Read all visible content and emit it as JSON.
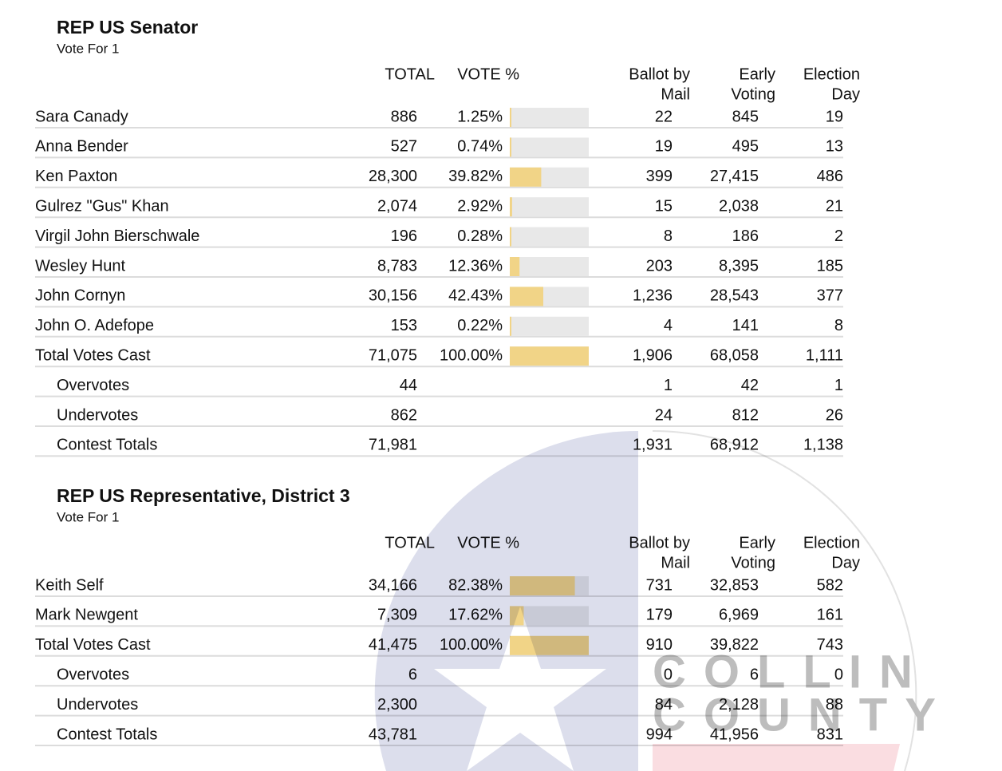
{
  "contests": [
    {
      "title": "REP US Senator",
      "vote_for": "Vote For 1",
      "headers": {
        "total": "TOTAL",
        "vote_pct": "VOTE %",
        "mail": [
          "Ballot by",
          "Mail"
        ],
        "early": [
          "Early",
          "Voting"
        ],
        "eday": [
          "Election",
          "Day"
        ]
      },
      "rows": [
        {
          "name": "Sara Canady",
          "total": "886",
          "pct": 1.25,
          "pct_label": "1.25%",
          "mail": "22",
          "early": "845",
          "eday": "19"
        },
        {
          "name": "Anna Bender",
          "total": "527",
          "pct": 0.74,
          "pct_label": "0.74%",
          "mail": "19",
          "early": "495",
          "eday": "13"
        },
        {
          "name": "Ken Paxton",
          "total": "28,300",
          "pct": 39.82,
          "pct_label": "39.82%",
          "mail": "399",
          "early": "27,415",
          "eday": "486"
        },
        {
          "name": "Gulrez \"Gus\" Khan",
          "total": "2,074",
          "pct": 2.92,
          "pct_label": "2.92%",
          "mail": "15",
          "early": "2,038",
          "eday": "21"
        },
        {
          "name": "Virgil John Bierschwale",
          "total": "196",
          "pct": 0.28,
          "pct_label": "0.28%",
          "mail": "8",
          "early": "186",
          "eday": "2"
        },
        {
          "name": "Wesley Hunt",
          "total": "8,783",
          "pct": 12.36,
          "pct_label": "12.36%",
          "mail": "203",
          "early": "8,395",
          "eday": "185"
        },
        {
          "name": "John Cornyn",
          "total": "30,156",
          "pct": 42.43,
          "pct_label": "42.43%",
          "mail": "1,236",
          "early": "28,543",
          "eday": "377"
        },
        {
          "name": "John O. Adefope",
          "total": "153",
          "pct": 0.22,
          "pct_label": "0.22%",
          "mail": "4",
          "early": "141",
          "eday": "8"
        },
        {
          "name": "Total Votes Cast",
          "total": "71,075",
          "pct": 100,
          "pct_label": "100.00%",
          "mail": "1,906",
          "early": "68,058",
          "eday": "1,111"
        }
      ],
      "summary": [
        {
          "name": "Overvotes",
          "total": "44",
          "mail": "1",
          "early": "42",
          "eday": "1"
        },
        {
          "name": "Undervotes",
          "total": "862",
          "mail": "24",
          "early": "812",
          "eday": "26"
        },
        {
          "name": "Contest Totals",
          "total": "71,981",
          "mail": "1,931",
          "early": "68,912",
          "eday": "1,138"
        }
      ]
    },
    {
      "title": "REP US Representative, District 3",
      "vote_for": "Vote For 1",
      "headers": {
        "total": "TOTAL",
        "vote_pct": "VOTE %",
        "mail": [
          "Ballot by",
          "Mail"
        ],
        "early": [
          "Early",
          "Voting"
        ],
        "eday": [
          "Election",
          "Day"
        ]
      },
      "rows": [
        {
          "name": "Keith Self",
          "total": "34,166",
          "pct": 82.38,
          "pct_label": "82.38%",
          "mail": "731",
          "early": "32,853",
          "eday": "582"
        },
        {
          "name": "Mark Newgent",
          "total": "7,309",
          "pct": 17.62,
          "pct_label": "17.62%",
          "mail": "179",
          "early": "6,969",
          "eday": "161"
        },
        {
          "name": "Total Votes Cast",
          "total": "41,475",
          "pct": 100,
          "pct_label": "100.00%",
          "mail": "910",
          "early": "39,822",
          "eday": "743"
        }
      ],
      "summary": [
        {
          "name": "Overvotes",
          "total": "6",
          "mail": "0",
          "early": "6",
          "eday": "0"
        },
        {
          "name": "Undervotes",
          "total": "2,300",
          "mail": "84",
          "early": "2,128",
          "eday": "88"
        },
        {
          "name": "Contest Totals",
          "total": "43,781",
          "mail": "994",
          "early": "41,956",
          "eday": "831"
        }
      ]
    }
  ],
  "watermark": [
    "COLLIN",
    "COUNTY"
  ]
}
